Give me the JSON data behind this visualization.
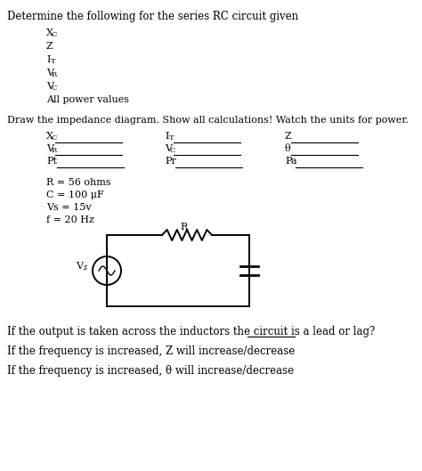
{
  "title": "Determine the following for the series RC circuit given",
  "section2_title": "Draw the impedance diagram. Show all calculations! Watch the units for power.",
  "given_values": [
    "R = 56 ohms",
    "C = 100 μF",
    "Vs = 15v",
    "f = 20 Hz"
  ],
  "footer1": "If the output is taken across the inductors the circuit is a lead or lag?",
  "footer2": "If the frequency is increased, Z will increase/decrease",
  "footer3": "If the frequency is increased, θ will increase/decrease",
  "footer1_underline_start": "lead or lag?",
  "bg_color": "#ffffff",
  "text_color": "#000000",
  "font_size_title": 8.5,
  "font_size_body": 8.0,
  "font_size_footer": 8.5
}
